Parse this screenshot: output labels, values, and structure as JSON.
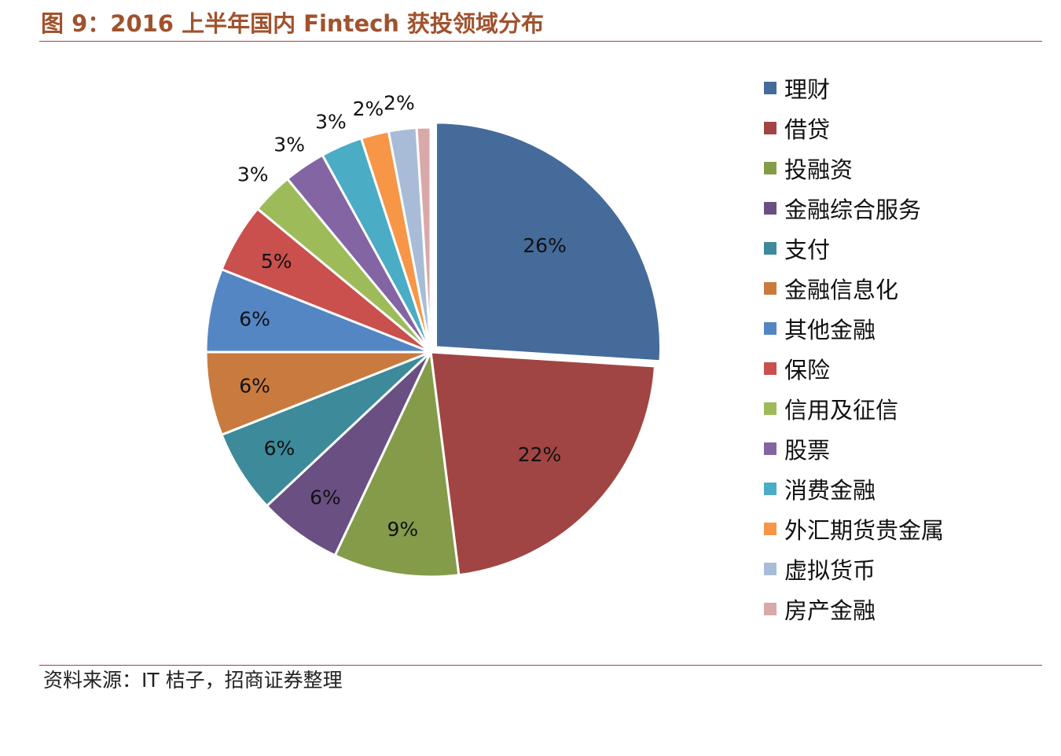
{
  "title": "图 9：2016 上半年国内 Fintech 获投领域分布",
  "source": "资料来源：IT 桔子，招商证券整理",
  "chart_data": {
    "type": "pie",
    "title": "",
    "legend_position": "right",
    "slices": [
      {
        "name": "理财",
        "value": 26,
        "label": "26%",
        "color": "#456b9a"
      },
      {
        "name": "借贷",
        "value": 22,
        "label": "22%",
        "color": "#a04543"
      },
      {
        "name": "投融资",
        "value": 9,
        "label": "9%",
        "color": "#849c4a"
      },
      {
        "name": "金融综合服务",
        "value": 6,
        "label": "6%",
        "color": "#6a4f82"
      },
      {
        "name": "支付",
        "value": 6,
        "label": "6%",
        "color": "#3d8a9b"
      },
      {
        "name": "金融信息化",
        "value": 6,
        "label": "6%",
        "color": "#c97b3f"
      },
      {
        "name": "其他金融",
        "value": 6,
        "label": "6%",
        "color": "#5486c4"
      },
      {
        "name": "保险",
        "value": 5,
        "label": "5%",
        "color": "#c9504d"
      },
      {
        "name": "信用及征信",
        "value": 3,
        "label": "3%",
        "color": "#9dbb59"
      },
      {
        "name": "股票",
        "value": 3,
        "label": "3%",
        "color": "#8365a3"
      },
      {
        "name": "消费金融",
        "value": 3,
        "label": "3%",
        "color": "#4bacc6"
      },
      {
        "name": "外汇期货贵金属",
        "value": 2,
        "label": "2%",
        "color": "#f79646"
      },
      {
        "name": "虚拟货币",
        "value": 2,
        "label": "2%",
        "color": "#a8bcd8"
      },
      {
        "name": "房产金融",
        "value": 1,
        "label": "",
        "color": "#d9a8a8"
      }
    ]
  }
}
